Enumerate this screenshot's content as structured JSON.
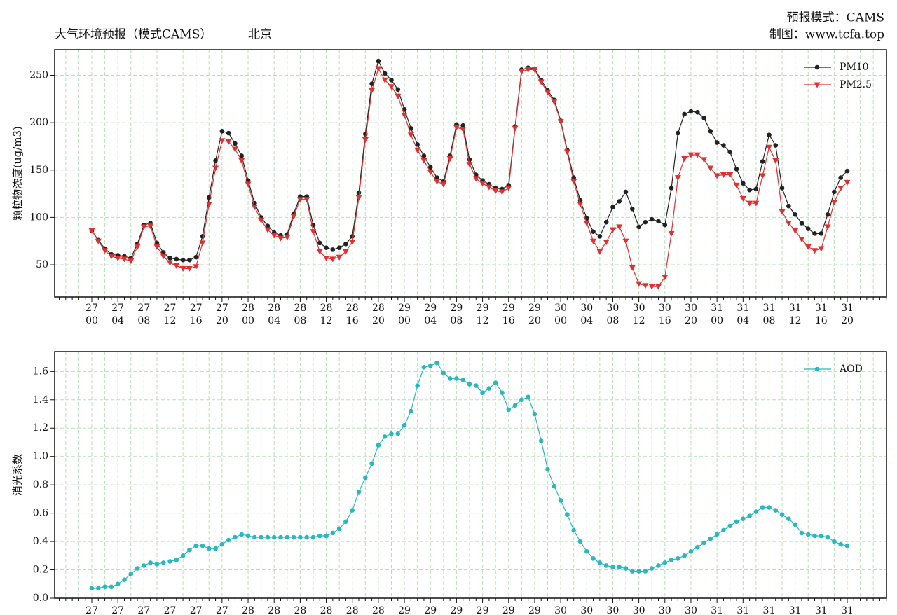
{
  "chart_data": [
    {
      "type": "line",
      "title": "大气环境预报（模式CAMS）",
      "location": "北京",
      "notes": [
        "预报模式：CAMS",
        "制图：www.tcfa.top"
      ],
      "ylabel": "颗粒物浓度(ug/m3)",
      "categories": [
        "27 00",
        null,
        null,
        null,
        "27 04",
        null,
        null,
        null,
        "27 08",
        null,
        null,
        null,
        "27 12",
        null,
        null,
        null,
        "27 16",
        null,
        null,
        null,
        "27 20",
        null,
        null,
        null,
        "28 00",
        null,
        null,
        null,
        "28 04",
        null,
        null,
        null,
        "28 08",
        null,
        null,
        null,
        "28 12",
        null,
        null,
        null,
        "28 16",
        null,
        null,
        null,
        "28 20",
        null,
        null,
        null,
        "29 00",
        null,
        null,
        null,
        "29 04",
        null,
        null,
        null,
        "29 08",
        null,
        null,
        null,
        "29 12",
        null,
        null,
        null,
        "29 16",
        null,
        null,
        null,
        "29 20",
        null,
        null,
        null,
        "30 00",
        null,
        null,
        null,
        "30 04",
        null,
        null,
        null,
        "30 08",
        null,
        null,
        null,
        "30 12",
        null,
        null,
        null,
        "30 16",
        null,
        null,
        null,
        "30 20",
        null,
        null,
        null,
        "31 00",
        null,
        null,
        null,
        "31 04",
        null,
        null,
        null,
        "31 08",
        null,
        null,
        null,
        "31 12",
        null,
        null,
        null,
        "31 16",
        null,
        null,
        null,
        "31 20"
      ],
      "series": [
        {
          "name": "PM10",
          "color": "#222222",
          "marker": "circle",
          "values": [
            86,
            76,
            67,
            61,
            60,
            59,
            57,
            72,
            92,
            94,
            73,
            63,
            57,
            56,
            55,
            55,
            58,
            80,
            121,
            160,
            191,
            189,
            178,
            165,
            139,
            115,
            100,
            91,
            84,
            81,
            82,
            104,
            122,
            122,
            92,
            73,
            68,
            66,
            68,
            72,
            80,
            126,
            188,
            241,
            265,
            252,
            245,
            235,
            214,
            194,
            177,
            165,
            153,
            142,
            138,
            165,
            198,
            197,
            161,
            145,
            139,
            135,
            131,
            130,
            134,
            196,
            256,
            258,
            257,
            245,
            234,
            224,
            202,
            171,
            142,
            118,
            99,
            85,
            80,
            95,
            111,
            117,
            127,
            109,
            90,
            95,
            98,
            96,
            92,
            131,
            189,
            209,
            212,
            211,
            205,
            191,
            179,
            176,
            169,
            151,
            136,
            129,
            130,
            159,
            187,
            176,
            131,
            112,
            103,
            94,
            88,
            83,
            83,
            103,
            127,
            142,
            149
          ]
        },
        {
          "name": "PM2.5",
          "color": "#e03030",
          "marker": "triangle-down",
          "values": [
            86,
            75,
            65,
            59,
            57,
            56,
            54,
            69,
            90,
            91,
            69,
            59,
            52,
            49,
            46,
            46,
            48,
            73,
            114,
            152,
            181,
            180,
            172,
            160,
            135,
            111,
            97,
            87,
            81,
            78,
            79,
            101,
            119,
            119,
            85,
            64,
            57,
            56,
            58,
            64,
            74,
            121,
            182,
            234,
            257,
            245,
            238,
            228,
            208,
            187,
            171,
            160,
            148,
            138,
            135,
            162,
            195,
            193,
            156,
            141,
            136,
            132,
            128,
            127,
            131,
            194,
            254,
            256,
            256,
            243,
            232,
            222,
            201,
            169,
            138,
            114,
            94,
            75,
            64,
            74,
            87,
            90,
            75,
            47,
            30,
            28,
            27,
            27,
            37,
            83,
            142,
            162,
            166,
            166,
            161,
            152,
            144,
            145,
            145,
            134,
            120,
            115,
            115,
            144,
            174,
            160,
            106,
            94,
            86,
            77,
            69,
            65,
            67,
            90,
            116,
            131,
            137
          ]
        }
      ],
      "ylim": [
        16,
        277
      ],
      "yticks": [
        50,
        100,
        150,
        200,
        250
      ],
      "grid": true,
      "legend": "upper right"
    },
    {
      "type": "line",
      "ylabel": "消光系数",
      "categories": [
        "27",
        null,
        null,
        null,
        "27",
        null,
        null,
        null,
        "27",
        null,
        null,
        null,
        "27",
        null,
        null,
        null,
        "27",
        null,
        null,
        null,
        "27",
        null,
        null,
        null,
        "28",
        null,
        null,
        null,
        "28",
        null,
        null,
        null,
        "28",
        null,
        null,
        null,
        "28",
        null,
        null,
        null,
        "28",
        null,
        null,
        null,
        "28",
        null,
        null,
        null,
        "29",
        null,
        null,
        null,
        "29",
        null,
        null,
        null,
        "29",
        null,
        null,
        null,
        "29",
        null,
        null,
        null,
        "29",
        null,
        null,
        null,
        "29",
        null,
        null,
        null,
        "30",
        null,
        null,
        null,
        "30",
        null,
        null,
        null,
        "30",
        null,
        null,
        null,
        "30",
        null,
        null,
        null,
        "30",
        null,
        null,
        null,
        "30",
        null,
        null,
        null,
        "31",
        null,
        null,
        null,
        "31",
        null,
        null,
        null,
        "31",
        null,
        null,
        null,
        "31",
        null,
        null,
        null,
        "31",
        null,
        null,
        null,
        "31"
      ],
      "series": [
        {
          "name": "AOD",
          "color": "#2ab8c0",
          "marker": "circle",
          "values": [
            0.07,
            0.07,
            0.08,
            0.08,
            0.1,
            0.13,
            0.17,
            0.21,
            0.23,
            0.25,
            0.24,
            0.25,
            0.26,
            0.27,
            0.3,
            0.34,
            0.37,
            0.37,
            0.35,
            0.35,
            0.38,
            0.41,
            0.43,
            0.45,
            0.44,
            0.43,
            0.43,
            0.43,
            0.43,
            0.43,
            0.43,
            0.43,
            0.43,
            0.43,
            0.43,
            0.44,
            0.44,
            0.46,
            0.49,
            0.54,
            0.62,
            0.75,
            0.85,
            0.95,
            1.08,
            1.14,
            1.16,
            1.16,
            1.22,
            1.32,
            1.5,
            1.63,
            1.64,
            1.66,
            1.59,
            1.55,
            1.55,
            1.54,
            1.51,
            1.5,
            1.45,
            1.48,
            1.52,
            1.45,
            1.33,
            1.36,
            1.4,
            1.42,
            1.3,
            1.11,
            0.91,
            0.79,
            0.69,
            0.59,
            0.48,
            0.4,
            0.33,
            0.28,
            0.25,
            0.23,
            0.22,
            0.22,
            0.21,
            0.19,
            0.19,
            0.19,
            0.21,
            0.23,
            0.25,
            0.27,
            0.28,
            0.3,
            0.33,
            0.36,
            0.39,
            0.42,
            0.45,
            0.48,
            0.51,
            0.54,
            0.56,
            0.58,
            0.61,
            0.64,
            0.64,
            0.62,
            0.59,
            0.56,
            0.52,
            0.46,
            0.45,
            0.44,
            0.44,
            0.43,
            0.4,
            0.38,
            0.37
          ]
        }
      ],
      "ylim": [
        0,
        1.74
      ],
      "yticks": [
        {
          "value": 0,
          "label": "0.0"
        },
        0.2,
        0.4,
        0.6,
        0.8,
        {
          "value": 1,
          "label": "1.0"
        },
        1.2,
        1.4,
        1.6
      ],
      "grid": true,
      "legend": "upper right"
    }
  ]
}
